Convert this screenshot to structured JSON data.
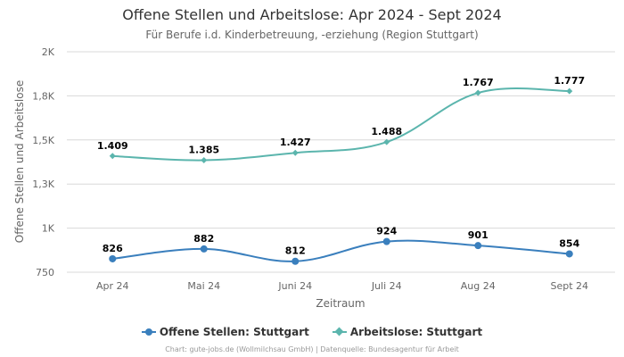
{
  "colors": {
    "series1": "#3a7fbd",
    "series2": "#5bb5ad",
    "grid": "#d8d8d8"
  },
  "chart_data": {
    "type": "line",
    "title": "Offene Stellen und Arbeitslose: Apr 2024 - Sept 2024",
    "subtitle": "Für Berufe i.d. Kinderbetreuung, -erziehung (Region Stuttgart)",
    "xlabel": "Zeitraum",
    "ylabel": "Offene Stellen und Arbeitslose",
    "categories": [
      "Apr 24",
      "Mai 24",
      "Juni 24",
      "Juli 24",
      "Aug 24",
      "Sept 24"
    ],
    "ylim": [
      750,
      2000
    ],
    "yticks": [
      {
        "value": 750,
        "label": "750"
      },
      {
        "value": 1000,
        "label": "1K"
      },
      {
        "value": 1250,
        "label": "1,3K"
      },
      {
        "value": 1500,
        "label": "1,5K"
      },
      {
        "value": 1750,
        "label": "1,8K"
      },
      {
        "value": 2000,
        "label": "2K"
      }
    ],
    "series": [
      {
        "name": "Offene Stellen: Stuttgart",
        "values": [
          826,
          882,
          812,
          924,
          901,
          854
        ],
        "labels": [
          "826",
          "882",
          "812",
          "924",
          "901",
          "854"
        ]
      },
      {
        "name": "Arbeitslose: Stuttgart",
        "values": [
          1409,
          1385,
          1427,
          1488,
          1767,
          1777
        ],
        "labels": [
          "1.409",
          "1.385",
          "1.427",
          "1.488",
          "1.767",
          "1.777"
        ]
      }
    ],
    "legend": "bottom-center",
    "grid": true
  },
  "legend": {
    "item1": "Offene Stellen: Stuttgart",
    "item2": "Arbeitslose: Stuttgart"
  },
  "credits": "Chart: gute-jobs.de (Wollmilchsau GmbH) | Datenquelle: Bundesagentur für Arbeit"
}
